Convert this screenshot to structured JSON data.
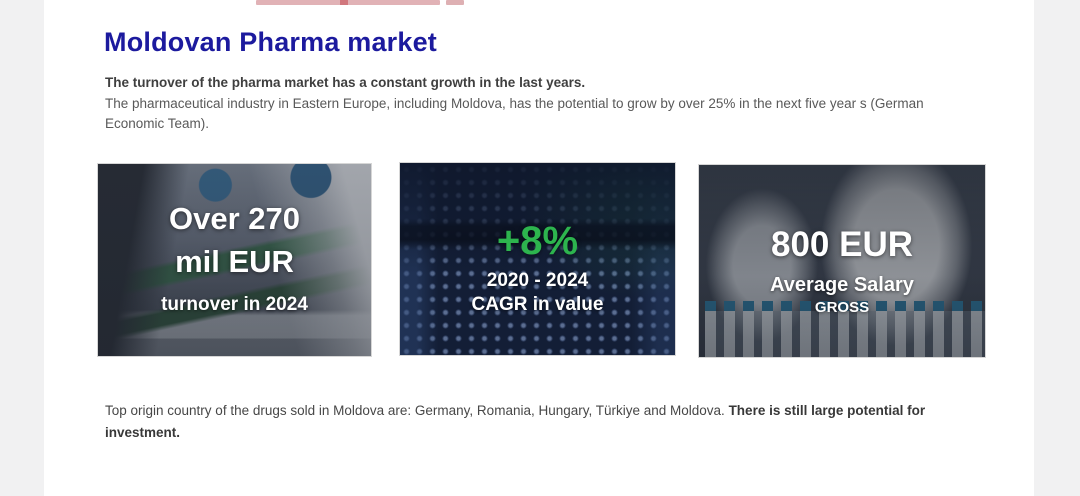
{
  "page": {
    "title": "Moldovan Pharma market",
    "intro": {
      "bold_line": "The turnover of the pharma market has a constant growth in the last years.",
      "body": "The pharmaceutical industry in Eastern Europe, including Moldova, has the potential to grow by over 25% in the next five year s (German Economic Team)."
    },
    "footer": {
      "text": "Top origin country of the drugs sold in Moldova are: Germany,  Romania, Hungary, Türkiye and Moldova. ",
      "bold": "There is still large potential for investment."
    }
  },
  "cards": [
    {
      "stat_line1": "Over 270",
      "stat_line2": "mil EUR",
      "caption": "turnover in 2024"
    },
    {
      "stat": "+8%",
      "caption_line1": "2020 - 2024",
      "caption_line2": "CAGR in value",
      "stat_color": "#2db44e"
    },
    {
      "stat": "800 EUR",
      "caption_line1": "Average Salary",
      "caption_line2": "GROSS"
    }
  ],
  "colors": {
    "title_navy": "#1c1a9e",
    "accent_green": "#2db44e",
    "page_background": "#ffffff",
    "margin_gray": "#f1f1f2"
  }
}
